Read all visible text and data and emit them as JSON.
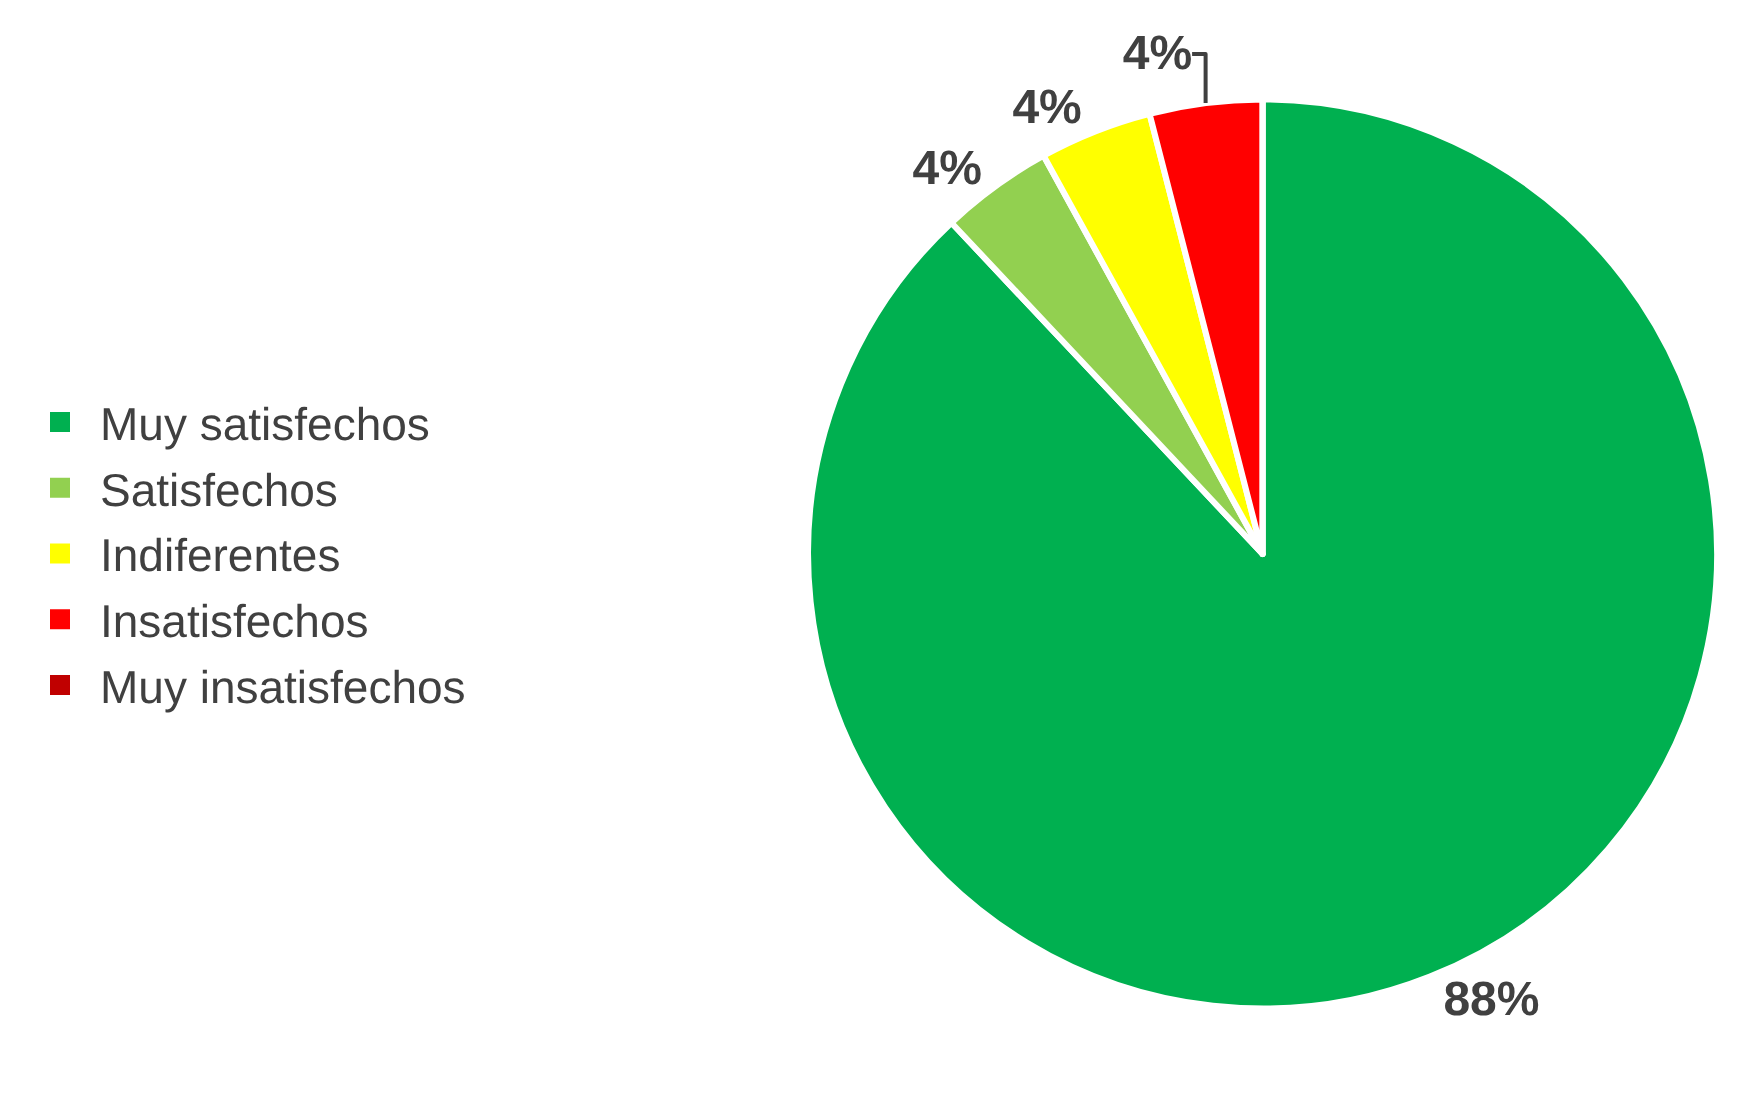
{
  "chart_data": {
    "type": "pie",
    "categories": [
      "Muy satisfechos",
      "Satisfechos",
      "Indiferentes",
      "Insatisfechos",
      "Muy insatisfechos"
    ],
    "values": [
      88,
      4,
      4,
      4,
      0
    ],
    "colors": [
      "#00b050",
      "#92d050",
      "#ffff00",
      "#ff0000",
      "#c00000"
    ],
    "value_labels": [
      "88%",
      "4%",
      "4%",
      "4%",
      null
    ],
    "legend": "left"
  }
}
